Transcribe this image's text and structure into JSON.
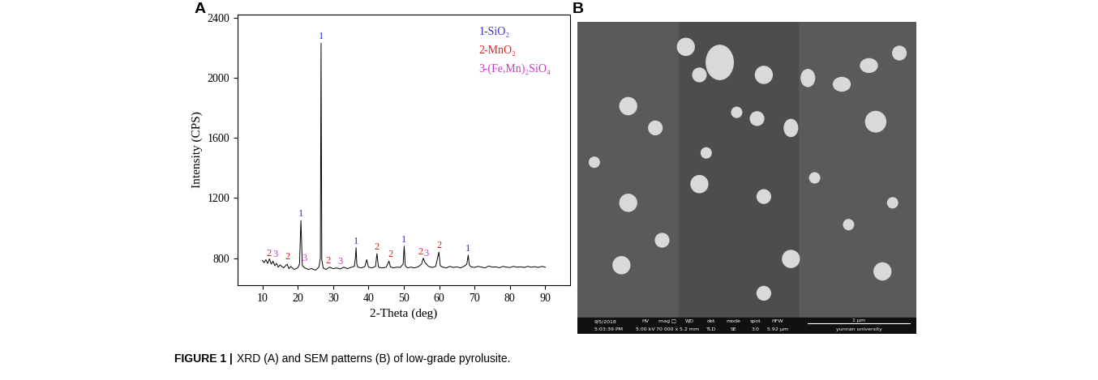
{
  "chart_data": {
    "type": "line",
    "x_label": "2-Theta (deg)",
    "y_label": "Intensity (CPS)",
    "x": [
      10,
      10.5,
      11,
      11.5,
      12,
      12.5,
      13,
      13.5,
      14,
      14.5,
      15,
      16,
      17,
      17.5,
      18,
      19,
      20,
      20.5,
      20.9,
      21.3,
      22,
      23,
      24,
      25,
      26,
      26.4,
      26.6,
      26.8,
      27.2,
      28,
      29,
      30,
      31,
      32,
      33,
      34,
      35,
      36,
      36.3,
      36.5,
      36.7,
      37,
      38,
      39,
      39.5,
      40,
      41,
      42,
      42.4,
      42.8,
      43,
      44,
      45,
      45.8,
      46.2,
      47,
      48,
      49,
      49.8,
      50.1,
      50.4,
      51,
      52,
      53,
      54,
      55,
      55.5,
      56,
      57,
      58,
      59,
      59.9,
      60.3,
      61,
      62,
      63,
      64,
      65,
      66,
      67,
      67.8,
      68.2,
      68.5,
      69,
      70,
      71,
      72,
      73,
      74,
      75,
      76,
      77,
      78,
      79,
      80,
      81,
      82,
      83,
      84,
      85,
      86,
      87,
      88,
      89,
      90
    ],
    "series": [
      {
        "name": null,
        "color": "#000000",
        "values": [
          785,
          770,
          790,
          765,
          795,
          760,
          780,
          750,
          765,
          740,
          755,
          735,
          760,
          730,
          745,
          725,
          735,
          760,
          1050,
          750,
          735,
          725,
          730,
          720,
          740,
          800,
          2230,
          790,
          735,
          725,
          740,
          730,
          735,
          728,
          740,
          730,
          738,
          745,
          800,
          870,
          760,
          740,
          735,
          745,
          790,
          740,
          735,
          745,
          830,
          745,
          738,
          735,
          740,
          780,
          742,
          735,
          740,
          738,
          760,
          880,
          750,
          735,
          740,
          735,
          742,
          760,
          800,
          770,
          745,
          738,
          745,
          840,
          750,
          740,
          735,
          745,
          738,
          742,
          735,
          745,
          760,
          820,
          755,
          742,
          738,
          745,
          740,
          735,
          748,
          740,
          742,
          736,
          745,
          740,
          738,
          745,
          740,
          742,
          738,
          745,
          740,
          743,
          738,
          745,
          740
        ]
      }
    ],
    "xlim": [
      3,
      97
    ],
    "xticks": [
      10,
      20,
      30,
      40,
      50,
      60,
      70,
      80,
      90
    ],
    "ylim": [
      620,
      2420
    ],
    "yticks": [
      800,
      1200,
      1600,
      2000,
      2400
    ],
    "annotations": [
      {
        "text": "1",
        "x": 26.6,
        "y": 2240,
        "color": "#3333cc"
      },
      {
        "text": "1",
        "x": 20.9,
        "y": 1060,
        "color": "#3333cc"
      },
      {
        "text": "1",
        "x": 36.5,
        "y": 880,
        "color": "#3333cc"
      },
      {
        "text": "1",
        "x": 50.1,
        "y": 890,
        "color": "#3333cc"
      },
      {
        "text": "1",
        "x": 68.2,
        "y": 830,
        "color": "#3333cc"
      },
      {
        "text": "2",
        "x": 11.8,
        "y": 800,
        "color": "#e0201b"
      },
      {
        "text": "3",
        "x": 13.6,
        "y": 790,
        "color": "#cc33cc"
      },
      {
        "text": "2",
        "x": 17.0,
        "y": 775,
        "color": "#e0201b"
      },
      {
        "text": "3",
        "x": 22.0,
        "y": 765,
        "color": "#cc33cc"
      },
      {
        "text": "2",
        "x": 28.6,
        "y": 750,
        "color": "#e0201b"
      },
      {
        "text": "3",
        "x": 32.0,
        "y": 745,
        "color": "#cc33cc"
      },
      {
        "text": "2",
        "x": 42.4,
        "y": 840,
        "color": "#e0201b"
      },
      {
        "text": "2",
        "x": 46.2,
        "y": 790,
        "color": "#e0201b"
      },
      {
        "text": "2",
        "x": 54.8,
        "y": 810,
        "color": "#e0201b"
      },
      {
        "text": "3",
        "x": 56.4,
        "y": 800,
        "color": "#cc33cc"
      },
      {
        "text": "2",
        "x": 59.9,
        "y": 850,
        "color": "#e0201b"
      }
    ],
    "key": [
      {
        "text": "1-SiO₂",
        "color": "#3333cc"
      },
      {
        "text": "2-MnO₂",
        "color": "#e0201b"
      },
      {
        "text": "3-(Fe,Mn)₂SiO₄",
        "color": "#cc33cc"
      }
    ]
  },
  "panel_labels": [
    "A",
    "B"
  ],
  "sem_image": {
    "info_bar": {
      "date": "9/5/2018",
      "time": "5:03:39 PM",
      "fields": [
        {
          "name": "HV",
          "value": "5.00 kV"
        },
        {
          "name": "mag □",
          "value": "70 000 x"
        },
        {
          "name": "WD",
          "value": "5.2 mm"
        },
        {
          "name": "det",
          "value": "TLD"
        },
        {
          "name": "mode",
          "value": "SE"
        },
        {
          "name": "spot",
          "value": "3.0"
        },
        {
          "name": "HFW",
          "value": "5.92 μm"
        }
      ],
      "scale_bar": "1 μm",
      "institution": "yunnan university"
    }
  },
  "caption": {
    "label": "FIGURE 1 |",
    "text": "XRD (A) and SEM patterns (B) of low-grade pyrolusite."
  }
}
